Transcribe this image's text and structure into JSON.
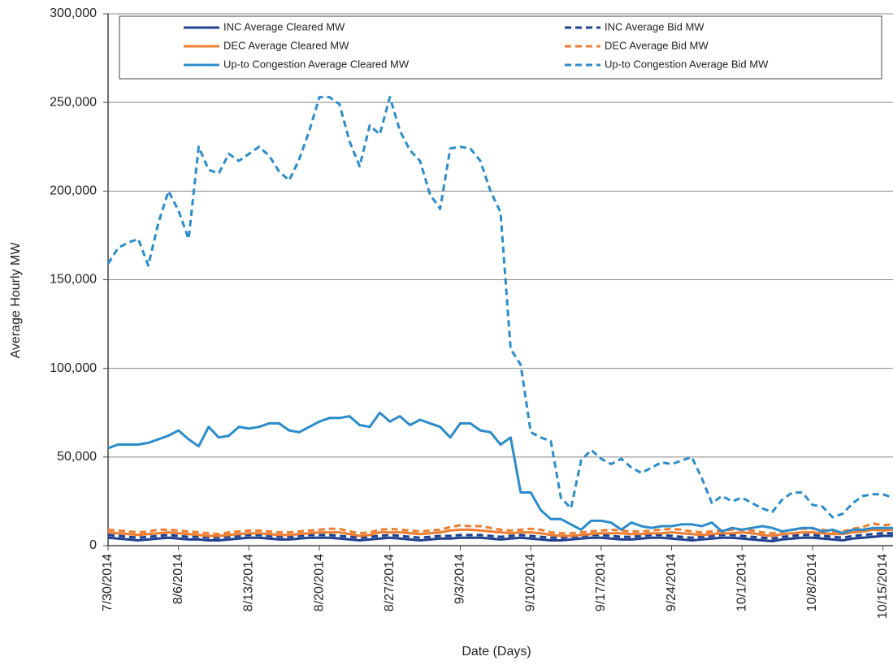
{
  "chart_data": {
    "type": "line",
    "x_label": "Date (Days)",
    "y_label": "Average Hourly MW",
    "categories": [
      "7/30/2014",
      null,
      null,
      null,
      null,
      null,
      null,
      "8/6/2014",
      null,
      null,
      null,
      null,
      null,
      null,
      "8/13/2014",
      null,
      null,
      null,
      null,
      null,
      null,
      "8/20/2014",
      null,
      null,
      null,
      null,
      null,
      null,
      "8/27/2014",
      null,
      null,
      null,
      null,
      null,
      null,
      "9/3/2014",
      null,
      null,
      null,
      null,
      null,
      null,
      "9/10/2014",
      null,
      null,
      null,
      null,
      null,
      null,
      "9/17/2014",
      null,
      null,
      null,
      null,
      null,
      null,
      "9/24/2014",
      null,
      null,
      null,
      null,
      null,
      null,
      "10/1/2014",
      null,
      null,
      null,
      null,
      null,
      null,
      "10/8/2014",
      null,
      null,
      null,
      null,
      null,
      null,
      "10/15/2014",
      null
    ],
    "ylim": [
      0,
      300000
    ],
    "yticks": [
      0,
      {
        "value": 50000,
        "label": "50,000"
      },
      {
        "value": 100000,
        "label": "100,000"
      },
      {
        "value": 150000,
        "label": "150,000"
      },
      {
        "value": 200000,
        "label": "200,000"
      },
      {
        "value": 250000,
        "label": "250,000"
      },
      {
        "value": 300000,
        "label": "300,000"
      }
    ],
    "grid": true,
    "legend": "top",
    "series": [
      {
        "name": "INC Average Cleared MW",
        "color": "#1f3f8f",
        "dashed": false,
        "values": [
          4500,
          4000,
          3500,
          3000,
          3500,
          4000,
          4500,
          4000,
          3500,
          3500,
          3000,
          3000,
          3500,
          4000,
          4500,
          4500,
          4000,
          3500,
          3500,
          4000,
          4500,
          4500,
          4500,
          4000,
          3500,
          3000,
          3500,
          4000,
          4500,
          4000,
          3500,
          3000,
          3500,
          4000,
          4000,
          4500,
          4500,
          4500,
          4000,
          3500,
          4000,
          4500,
          4000,
          3500,
          3000,
          3000,
          3500,
          4000,
          4500,
          4500,
          4000,
          3500,
          3500,
          4000,
          4500,
          4500,
          4000,
          3500,
          3000,
          3500,
          4000,
          4500,
          4500,
          4000,
          3500,
          3000,
          2500,
          3500,
          4000,
          4500,
          4500,
          4000,
          3500,
          3000,
          4000,
          4500,
          5000,
          5500,
          5500
        ]
      },
      {
        "name": "INC Average Bid MW",
        "color": "#1f3f8f",
        "dashed": true,
        "values": [
          6000,
          5500,
          5000,
          4500,
          5000,
          5500,
          6000,
          5500,
          5000,
          5000,
          4500,
          4500,
          5000,
          5500,
          6000,
          6000,
          5500,
          5000,
          5000,
          5500,
          6000,
          6000,
          6000,
          5500,
          5000,
          4500,
          5000,
          5500,
          6000,
          5500,
          5000,
          4500,
          5000,
          5500,
          5500,
          6000,
          6000,
          6000,
          5500,
          5000,
          5500,
          6000,
          5500,
          5000,
          4500,
          4500,
          5000,
          5500,
          6000,
          6000,
          5500,
          5000,
          5000,
          5500,
          6000,
          6000,
          5500,
          5000,
          4500,
          5000,
          5500,
          6000,
          6000,
          5500,
          5000,
          4500,
          4000,
          5000,
          5500,
          6000,
          6000,
          5500,
          5000,
          4500,
          5500,
          6000,
          6500,
          7000,
          7000
        ]
      },
      {
        "name": "DEC Average Cleared MW",
        "color": "#ed7d31",
        "dashed": false,
        "values": [
          7500,
          7000,
          6500,
          6000,
          6500,
          7000,
          7500,
          7000,
          6500,
          6000,
          5500,
          5500,
          6000,
          6500,
          7000,
          7000,
          6500,
          6000,
          6000,
          6500,
          7000,
          7500,
          7500,
          7500,
          6500,
          5500,
          6000,
          7500,
          7500,
          7500,
          7000,
          6500,
          7000,
          7500,
          8500,
          9000,
          9000,
          8500,
          8000,
          7500,
          7000,
          7500,
          7500,
          7000,
          6000,
          5500,
          5500,
          6000,
          6500,
          7000,
          7000,
          7000,
          6500,
          6500,
          7000,
          7000,
          7500,
          7000,
          6500,
          6000,
          6500,
          7000,
          7000,
          7500,
          7000,
          6000,
          5500,
          6500,
          7000,
          7500,
          7500,
          7000,
          6500,
          6500,
          7500,
          8000,
          9000,
          8500,
          9000
        ]
      },
      {
        "name": "DEC Average Bid MW",
        "color": "#ed7d31",
        "dashed": true,
        "values": [
          9000,
          8500,
          8000,
          7500,
          8000,
          9000,
          9000,
          8500,
          8000,
          7500,
          7000,
          6500,
          7500,
          8000,
          8500,
          8500,
          8000,
          7500,
          7500,
          8000,
          8500,
          9000,
          9500,
          9500,
          8000,
          7000,
          7500,
          9000,
          9500,
          9000,
          8500,
          8000,
          8500,
          9000,
          10500,
          11500,
          11000,
          11000,
          10000,
          9000,
          8500,
          9000,
          9500,
          9000,
          7500,
          7000,
          7000,
          7500,
          8000,
          8500,
          9000,
          8500,
          8000,
          8000,
          8500,
          9000,
          9500,
          9000,
          8000,
          7500,
          8000,
          8500,
          9000,
          9000,
          8500,
          7500,
          7000,
          8000,
          9000,
          9500,
          9500,
          9000,
          8000,
          8000,
          9500,
          10500,
          12500,
          11500,
          12000
        ]
      },
      {
        "name": "Up-to Congestion Average Cleared MW",
        "color": "#2b8ccb",
        "dashed": false,
        "values": [
          55000,
          57000,
          57000,
          57000,
          58000,
          60000,
          62000,
          65000,
          60000,
          56000,
          67000,
          61000,
          62000,
          67000,
          66000,
          67000,
          69000,
          69000,
          65000,
          64000,
          67000,
          70000,
          72000,
          72000,
          73000,
          68000,
          67000,
          75000,
          70000,
          73000,
          68000,
          71000,
          69000,
          67000,
          61000,
          69000,
          69000,
          65000,
          64000,
          57000,
          61000,
          30000,
          30000,
          20000,
          15000,
          15000,
          12000,
          9000,
          14000,
          14000,
          13000,
          9000,
          13000,
          11000,
          10000,
          11000,
          11000,
          12000,
          12000,
          11000,
          13000,
          8000,
          10000,
          9000,
          10000,
          11000,
          10000,
          8000,
          9000,
          10000,
          10000,
          8000,
          9000,
          7000,
          9000,
          9000,
          10000,
          10000,
          10000
        ]
      },
      {
        "name": "Up-to Congestion Average Bid MW",
        "color": "#2b8ccb",
        "dashed": true,
        "values": [
          159000,
          168000,
          171000,
          173000,
          158000,
          182000,
          200000,
          189000,
          173000,
          225000,
          212000,
          210000,
          221000,
          217000,
          221000,
          225000,
          220000,
          211000,
          206000,
          218000,
          234000,
          253000,
          253000,
          249000,
          228000,
          214000,
          237000,
          232000,
          253000,
          234000,
          223000,
          217000,
          198000,
          190000,
          224000,
          225000,
          224000,
          217000,
          200000,
          188000,
          111000,
          102000,
          64000,
          61000,
          59000,
          27000,
          21000,
          48000,
          54000,
          49000,
          46000,
          49000,
          44000,
          41000,
          44000,
          47000,
          46000,
          48000,
          50000,
          38000,
          24000,
          28000,
          25000,
          27000,
          24000,
          21000,
          19000,
          26000,
          30000,
          30000,
          23000,
          22000,
          16000,
          18000,
          24000,
          28000,
          29000,
          29000,
          27000
        ]
      }
    ]
  }
}
